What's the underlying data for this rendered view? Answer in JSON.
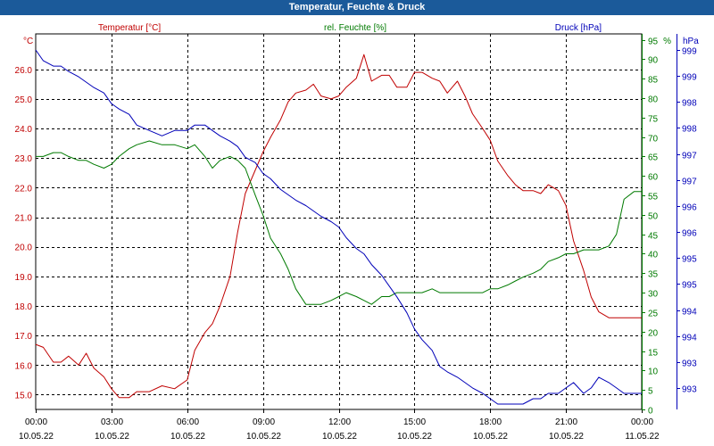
{
  "window": {
    "title": "Temperatur, Feuchte & Druck"
  },
  "colors": {
    "temperature": "#c00000",
    "humidity": "#007a00",
    "pressure": "#0000b8",
    "titlebar": "#1b5a9a"
  },
  "chart_data": {
    "type": "line",
    "title": "Temperatur, Feuchte & Druck",
    "xlabel": "",
    "x_range_hours": [
      0,
      24
    ],
    "x_ticks": [
      {
        "time": "00:00",
        "date": "10.05.22"
      },
      {
        "time": "03:00",
        "date": "10.05.22"
      },
      {
        "time": "06:00",
        "date": "10.05.22"
      },
      {
        "time": "09:00",
        "date": "10.05.22"
      },
      {
        "time": "12:00",
        "date": "10.05.22"
      },
      {
        "time": "15:00",
        "date": "10.05.22"
      },
      {
        "time": "18:00",
        "date": "10.05.22"
      },
      {
        "time": "21:00",
        "date": "10.05.22"
      },
      {
        "time": "00:00",
        "date": "11.05.22"
      }
    ],
    "axes": {
      "temperature": {
        "unit": "°C",
        "label": "Temperatur [°C]",
        "ylim": [
          14.5,
          27.2
        ],
        "ticks": [
          "15.0",
          "16.0",
          "17.0",
          "18.0",
          "19.0",
          "20.0",
          "21.0",
          "22.0",
          "23.0",
          "24.0",
          "25.0",
          "26.0"
        ]
      },
      "humidity": {
        "unit": "%",
        "label": "rel. Feuchte [%]",
        "ylim": [
          0,
          96.5
        ],
        "ticks": [
          "0",
          "5",
          "10",
          "15",
          "20",
          "25",
          "30",
          "35",
          "40",
          "45",
          "50",
          "55",
          "60",
          "65",
          "70",
          "75",
          "80",
          "85",
          "90",
          "95"
        ]
      },
      "pressure": {
        "unit": "hPa",
        "label": "Druck [hPa]",
        "ylim": [
          992.7,
          999.7
        ],
        "ticks": [
          "993",
          "993",
          "994",
          "994",
          "995",
          "995",
          "996",
          "996",
          "997",
          "997",
          "998",
          "998",
          "999",
          "999"
        ]
      }
    },
    "series": [
      {
        "name": "Temperatur [°C]",
        "axis": "temperature",
        "x": [
          0,
          0.3,
          0.7,
          1.0,
          1.3,
          1.7,
          2.0,
          2.3,
          2.7,
          3.0,
          3.3,
          3.7,
          4.0,
          4.5,
          5.0,
          5.5,
          6.0,
          6.3,
          6.7,
          7.0,
          7.3,
          7.7,
          8.0,
          8.3,
          8.7,
          9.0,
          9.3,
          9.7,
          10.0,
          10.3,
          10.7,
          11.0,
          11.3,
          11.7,
          12.0,
          12.3,
          12.7,
          13.0,
          13.3,
          13.7,
          14.0,
          14.3,
          14.7,
          15.0,
          15.3,
          15.7,
          16.0,
          16.3,
          16.7,
          17.0,
          17.3,
          17.7,
          18.0,
          18.3,
          18.7,
          19.0,
          19.3,
          19.7,
          20.0,
          20.3,
          20.7,
          21.0,
          21.3,
          21.7,
          22.0,
          22.3,
          22.7,
          23.0,
          23.3,
          23.7,
          24.0
        ],
        "values": [
          16.7,
          16.6,
          16.1,
          16.1,
          16.3,
          16.0,
          16.4,
          15.9,
          15.6,
          15.2,
          14.9,
          14.9,
          15.1,
          15.1,
          15.3,
          15.2,
          15.5,
          16.5,
          17.1,
          17.4,
          18.0,
          19.0,
          20.5,
          21.8,
          22.6,
          23.2,
          23.7,
          24.3,
          24.9,
          25.2,
          25.3,
          25.5,
          25.1,
          25.0,
          25.1,
          25.4,
          25.7,
          26.5,
          25.6,
          25.8,
          25.8,
          25.4,
          25.4,
          25.9,
          25.9,
          25.7,
          25.6,
          25.2,
          25.6,
          25.1,
          24.5,
          24.0,
          23.6,
          22.9,
          22.4,
          22.1,
          21.9,
          21.9,
          21.8,
          22.1,
          21.9,
          21.4,
          20.2,
          19.2,
          18.3,
          17.8,
          17.6,
          17.6,
          17.6,
          17.6,
          17.6
        ]
      },
      {
        "name": "rel. Feuchte [%]",
        "axis": "humidity",
        "x": [
          0,
          0.3,
          0.7,
          1.0,
          1.3,
          1.7,
          2.0,
          2.3,
          2.7,
          3.0,
          3.3,
          3.7,
          4.0,
          4.5,
          5.0,
          5.5,
          6.0,
          6.3,
          6.7,
          7.0,
          7.3,
          7.7,
          8.0,
          8.3,
          8.7,
          9.0,
          9.3,
          9.7,
          10.0,
          10.3,
          10.7,
          11.0,
          11.3,
          11.7,
          12.0,
          12.3,
          12.7,
          13.0,
          13.3,
          13.7,
          14.0,
          14.3,
          14.7,
          15.0,
          15.3,
          15.7,
          16.0,
          16.3,
          16.7,
          17.0,
          17.3,
          17.7,
          18.0,
          18.3,
          18.7,
          19.0,
          19.3,
          19.7,
          20.0,
          20.3,
          20.7,
          21.0,
          21.3,
          21.7,
          22.0,
          22.3,
          22.7,
          23.0,
          23.3,
          23.7,
          24.0
        ],
        "values": [
          65,
          65,
          66,
          66,
          65,
          64,
          64,
          63,
          62,
          63,
          65,
          67,
          68,
          69,
          68,
          68,
          67,
          68,
          65,
          62,
          64,
          65,
          64,
          62,
          55,
          50,
          44,
          40,
          36,
          31,
          27,
          27,
          27,
          28,
          29,
          30,
          29,
          28,
          27,
          29,
          29,
          30,
          30,
          30,
          30,
          31,
          30,
          30,
          30,
          30,
          30,
          30,
          31,
          31,
          32,
          33,
          34,
          35,
          36,
          38,
          39,
          40,
          40,
          41,
          41,
          41,
          42,
          45,
          54,
          56,
          56
        ]
      },
      {
        "name": "Druck [hPa]",
        "axis": "pressure",
        "x": [
          0,
          0.3,
          0.7,
          1.0,
          1.3,
          1.7,
          2.0,
          2.3,
          2.7,
          3.0,
          3.3,
          3.7,
          4.0,
          4.5,
          5.0,
          5.5,
          6.0,
          6.3,
          6.7,
          7.0,
          7.3,
          7.7,
          8.0,
          8.3,
          8.7,
          9.0,
          9.3,
          9.7,
          10.0,
          10.3,
          10.7,
          11.0,
          11.3,
          11.7,
          12.0,
          12.3,
          12.7,
          13.0,
          13.3,
          13.7,
          14.0,
          14.3,
          14.7,
          15.0,
          15.3,
          15.7,
          16.0,
          16.3,
          16.7,
          17.0,
          17.3,
          17.7,
          18.0,
          18.3,
          18.7,
          19.0,
          19.3,
          19.7,
          20.0,
          20.3,
          20.7,
          21.0,
          21.3,
          21.7,
          22.0,
          22.3,
          22.7,
          23.0,
          23.3,
          23.7,
          24.0
        ],
        "values": [
          999.4,
          999.2,
          999.1,
          999.1,
          999.0,
          998.9,
          998.8,
          998.7,
          998.6,
          998.4,
          998.3,
          998.2,
          998.0,
          997.9,
          997.8,
          997.9,
          997.9,
          998.0,
          998.0,
          997.9,
          997.8,
          997.7,
          997.6,
          997.4,
          997.3,
          997.1,
          997.0,
          996.8,
          996.7,
          996.6,
          996.5,
          996.4,
          996.3,
          996.2,
          996.1,
          995.9,
          995.7,
          995.6,
          995.4,
          995.2,
          995.0,
          994.8,
          994.5,
          994.2,
          994.0,
          993.8,
          993.5,
          993.4,
          993.3,
          993.2,
          993.1,
          993.0,
          992.9,
          992.8,
          992.8,
          992.8,
          992.8,
          992.9,
          992.9,
          993.0,
          993.0,
          993.1,
          993.2,
          993.0,
          993.1,
          993.3,
          993.2,
          993.1,
          993.0,
          993.0,
          993.0
        ]
      }
    ],
    "legend": "top",
    "grid": true
  }
}
